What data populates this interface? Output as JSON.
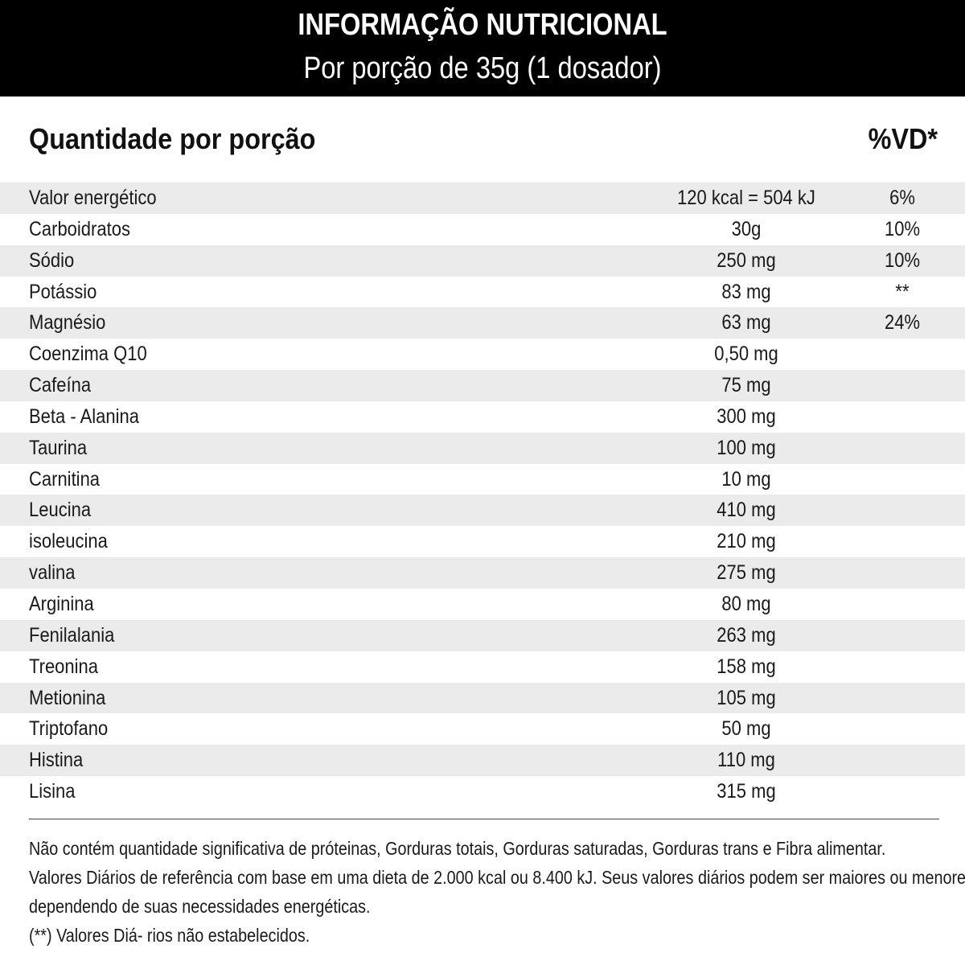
{
  "header": {
    "title": "INFORMAÇÃO NUTRICIONAL",
    "subtitle": "Por porção de 35g (1 dosador)"
  },
  "columns": {
    "quantity_label": "Quantidade por porção",
    "vd_label": "%VD*"
  },
  "rows": [
    {
      "name": "Valor energético",
      "amount": "120 kcal = 504 kJ",
      "vd": "6%"
    },
    {
      "name": "Carboidratos",
      "amount": "30g",
      "vd": "10%"
    },
    {
      "name": "Sódio",
      "amount": "250 mg",
      "vd": "10%"
    },
    {
      "name": "Potássio",
      "amount": "83 mg",
      "vd": "**"
    },
    {
      "name": "Magnésio",
      "amount": "63 mg",
      "vd": "24%"
    },
    {
      "name": "Coenzima Q10",
      "amount": "0,50 mg",
      "vd": ""
    },
    {
      "name": "Cafeína",
      "amount": "75 mg",
      "vd": ""
    },
    {
      "name": "Beta - Alanina",
      "amount": "300 mg",
      "vd": ""
    },
    {
      "name": "Taurina",
      "amount": "100 mg",
      "vd": ""
    },
    {
      "name": "Carnitina",
      "amount": "10 mg",
      "vd": ""
    },
    {
      "name": "Leucina",
      "amount": "410 mg",
      "vd": ""
    },
    {
      "name": "isoleucina",
      "amount": "210 mg",
      "vd": ""
    },
    {
      "name": "valina",
      "amount": "275 mg",
      "vd": ""
    },
    {
      "name": "Arginina",
      "amount": "80 mg",
      "vd": ""
    },
    {
      "name": "Fenilalania",
      "amount": "263 mg",
      "vd": ""
    },
    {
      "name": "Treonina",
      "amount": "158 mg",
      "vd": ""
    },
    {
      "name": "Metionina",
      "amount": "105 mg",
      "vd": ""
    },
    {
      "name": "Triptofano",
      "amount": "50 mg",
      "vd": ""
    },
    {
      "name": "Histina",
      "amount": "110 mg",
      "vd": ""
    },
    {
      "name": "Lisina",
      "amount": "315 mg",
      "vd": ""
    }
  ],
  "footer": {
    "line1": "Não contém quantidade significativa de próteinas, Gorduras totais, Gorduras saturadas, Gorduras trans e Fibra alimentar.",
    "line2": "Valores Diários de referência com base em uma dieta de 2.000 kcal ou 8.400 kJ. Seus valores diários podem ser maiores ou menores",
    "line3": "dependendo de suas necessidades energéticas.",
    "line4": "(**) Valores Diá- rios não estabelecidos."
  },
  "colors": {
    "header_bg": "#000000",
    "row_shade": "#ebebeb",
    "text": "#1a1a1a"
  }
}
